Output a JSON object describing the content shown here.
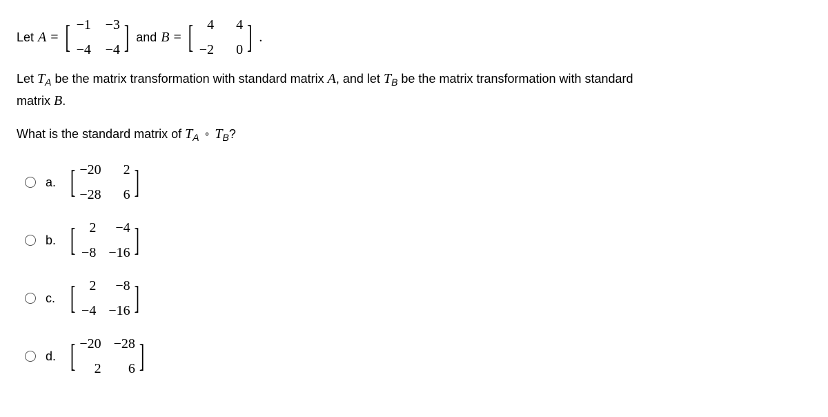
{
  "line1": {
    "let": "Let",
    "A": "A",
    "eq": "=",
    "matA": {
      "r1c1": "−1",
      "r1c2": "−3",
      "r2c1": "−4",
      "r2c2": "−4"
    },
    "and": "and",
    "B": "B",
    "matB": {
      "r1c1": "4",
      "r1c2": "4",
      "r2c1": "−2",
      "r2c2": "0"
    },
    "period": "."
  },
  "para1": {
    "p1": "Let ",
    "TA_T": "T",
    "TA_A": "A",
    "p2": " be the matrix transformation with standard matrix ",
    "A": "A",
    "p3": ", and let ",
    "TB_T": "T",
    "TB_B": "B",
    "p4": " be the matrix transformation with standard",
    "p5": "matrix ",
    "B": "B",
    "p6": "."
  },
  "question": {
    "q1": "What is the standard matrix of ",
    "TA_T": "T",
    "TA_A": "A",
    "circ": "∘",
    "TB_T": "T",
    "TB_B": "B",
    "q2": "?"
  },
  "options": {
    "a": {
      "letter": "a.",
      "m": {
        "r1c1": "−20",
        "r1c2": "2",
        "r2c1": "−28",
        "r2c2": "6"
      }
    },
    "b": {
      "letter": "b.",
      "m": {
        "r1c1": "2",
        "r1c2": "−4",
        "r2c1": "−8",
        "r2c2": "−16"
      }
    },
    "c": {
      "letter": "c.",
      "m": {
        "r1c1": "2",
        "r1c2": "−8",
        "r2c1": "−4",
        "r2c2": "−16"
      }
    },
    "d": {
      "letter": "d.",
      "m": {
        "r1c1": "−20",
        "r1c2": "−28",
        "r2c1": "2",
        "r2c2": "6"
      }
    }
  }
}
